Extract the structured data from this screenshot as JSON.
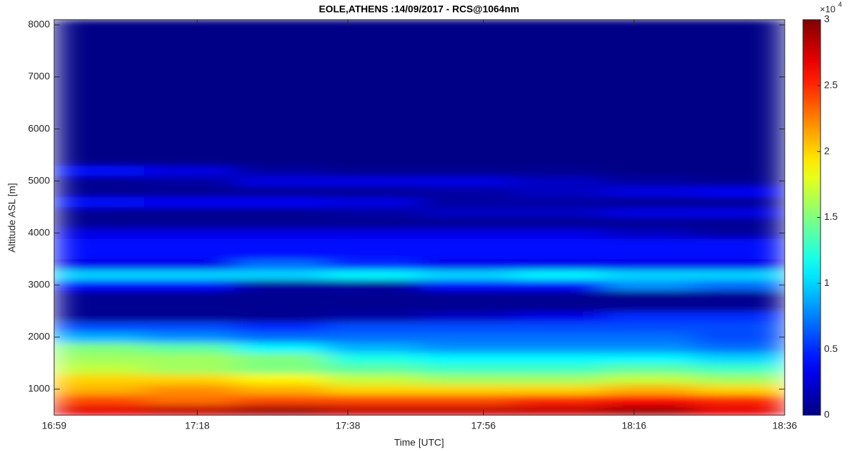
{
  "chart_data": {
    "type": "heatmap",
    "title": "EOLE,ATHENS :14/09/2017 - RCS@1064nm",
    "x_label": "Time [UTC]",
    "y_label": "Altitude ASL [m]",
    "colorbar_multiplier": "×10",
    "colorbar_exponent": "4",
    "colormap": "jet",
    "xlim": [
      1019,
      1116
    ],
    "xticks": [
      {
        "value": 1019,
        "label": "16:59"
      },
      {
        "value": 1038,
        "label": "17:18"
      },
      {
        "value": 1058,
        "label": "17:38"
      },
      {
        "value": 1076,
        "label": "17:56"
      },
      {
        "value": 1096,
        "label": "18:16"
      },
      {
        "value": 1116,
        "label": "18:36"
      }
    ],
    "ylim": [
      500,
      8100
    ],
    "yticks": [
      1000,
      2000,
      3000,
      4000,
      5000,
      6000,
      7000,
      8000
    ],
    "clim": [
      0,
      3
    ],
    "cticks": [
      0,
      0.5,
      1,
      1.5,
      2,
      2.5,
      3
    ],
    "x": [
      1025,
      1037,
      1049,
      1061,
      1074,
      1086,
      1098,
      1110
    ],
    "y": [
      600,
      800,
      1000,
      1200,
      1400,
      1600,
      1800,
      2000,
      2200,
      2400,
      2600,
      2800,
      3000,
      3200,
      3400,
      3600,
      3800,
      4000,
      4200,
      4400,
      4600,
      4800,
      5000,
      5200,
      5400,
      5600,
      5800,
      6000,
      6200,
      6400,
      6600,
      6800,
      7000,
      7200,
      7400,
      7600,
      7800,
      8000
    ],
    "z": [
      [
        2.7,
        2.8,
        2.9,
        2.8,
        2.8,
        2.8,
        2.9,
        2.7
      ],
      [
        2.4,
        2.3,
        2.4,
        2.4,
        2.4,
        2.5,
        2.6,
        2.5
      ],
      [
        2.1,
        2.2,
        2.1,
        2.0,
        2.0,
        2.0,
        2.1,
        2.0
      ],
      [
        2.0,
        2.0,
        1.9,
        1.7,
        1.6,
        1.6,
        1.7,
        1.6
      ],
      [
        1.7,
        1.6,
        1.5,
        1.4,
        1.3,
        1.3,
        1.4,
        1.3
      ],
      [
        1.6,
        1.6,
        1.5,
        1.2,
        1.1,
        1.1,
        1.1,
        1.0
      ],
      [
        1.5,
        1.4,
        1.1,
        0.9,
        0.8,
        0.8,
        0.8,
        0.7
      ],
      [
        0.9,
        0.8,
        0.7,
        0.7,
        0.7,
        0.7,
        0.7,
        0.6
      ],
      [
        0.6,
        0.6,
        0.5,
        0.6,
        0.6,
        0.6,
        0.6,
        0.6
      ],
      [
        0.05,
        0.05,
        0.05,
        0.1,
        0.2,
        0.3,
        0.5,
        0.5
      ],
      [
        0.05,
        0.05,
        0.05,
        0.05,
        0.05,
        0.05,
        0.05,
        0.05
      ],
      [
        0.05,
        0.05,
        0.05,
        0.05,
        0.05,
        0.05,
        0.05,
        0.05
      ],
      [
        0.4,
        0.4,
        0.1,
        0.1,
        0.4,
        0.4,
        0.8,
        0.7
      ],
      [
        1.0,
        1.0,
        1.0,
        1.1,
        1.0,
        1.1,
        1.0,
        1.0
      ],
      [
        0.3,
        0.3,
        0.7,
        0.5,
        0.3,
        0.3,
        0.3,
        0.3
      ],
      [
        0.4,
        0.4,
        0.4,
        0.4,
        0.4,
        0.4,
        0.4,
        0.4
      ],
      [
        0.4,
        0.4,
        0.4,
        0.4,
        0.4,
        0.4,
        0.4,
        0.4
      ],
      [
        0.3,
        0.3,
        0.3,
        0.3,
        0.3,
        0.3,
        0.2,
        0.1
      ],
      [
        0.05,
        0.05,
        0.05,
        0.05,
        0.05,
        0.05,
        0.05,
        0.05
      ],
      [
        0.05,
        0.05,
        0.05,
        0.1,
        0.2,
        0.2,
        0.3,
        0.3
      ],
      [
        0.4,
        0.35,
        0.35,
        0.3,
        0.1,
        0.1,
        0.05,
        0.05
      ],
      [
        0.05,
        0.05,
        0.05,
        0.05,
        0.1,
        0.2,
        0.3,
        0.35
      ],
      [
        0.05,
        0.1,
        0.3,
        0.3,
        0.3,
        0.2,
        0.1,
        0.05
      ],
      [
        0.4,
        0.3,
        0.1,
        0.05,
        0.05,
        0.05,
        0.02,
        0.02
      ],
      [
        0.02,
        0.02,
        0.02,
        0.02,
        0.02,
        0.02,
        0.02,
        0.02
      ],
      [
        0.02,
        0.02,
        0.02,
        0.02,
        0.02,
        0.02,
        0.02,
        0.02
      ],
      [
        0.02,
        0.02,
        0.02,
        0.02,
        0.02,
        0.02,
        0.02,
        0.02
      ],
      [
        0.02,
        0.02,
        0.02,
        0.02,
        0.02,
        0.02,
        0.02,
        0.02
      ],
      [
        0.02,
        0.02,
        0.02,
        0.02,
        0.02,
        0.02,
        0.02,
        0.02
      ],
      [
        0.02,
        0.02,
        0.02,
        0.02,
        0.02,
        0.02,
        0.02,
        0.02
      ],
      [
        0.02,
        0.02,
        0.02,
        0.02,
        0.02,
        0.02,
        0.02,
        0.02
      ],
      [
        0.02,
        0.02,
        0.02,
        0.02,
        0.02,
        0.02,
        0.02,
        0.02
      ],
      [
        0.02,
        0.02,
        0.02,
        0.02,
        0.02,
        0.02,
        0.02,
        0.02
      ],
      [
        0.02,
        0.02,
        0.02,
        0.02,
        0.02,
        0.02,
        0.02,
        0.02
      ],
      [
        0.02,
        0.02,
        0.02,
        0.02,
        0.02,
        0.02,
        0.02,
        0.02
      ],
      [
        0.02,
        0.02,
        0.02,
        0.02,
        0.02,
        0.02,
        0.02,
        0.02
      ],
      [
        0.02,
        0.02,
        0.02,
        0.02,
        0.02,
        0.02,
        0.02,
        0.02
      ],
      [
        0.02,
        0.02,
        0.02,
        0.02,
        0.02,
        0.02,
        0.02,
        0.02
      ]
    ]
  }
}
